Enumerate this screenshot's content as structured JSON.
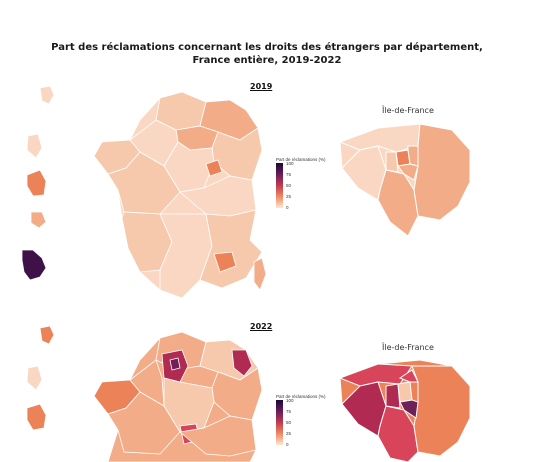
{
  "title": {
    "line1": "Part des réclamations concernant les droits des étrangers par département,",
    "line2": "France entière, 2019-2022"
  },
  "legend": {
    "title": "Part de réclamations (%)",
    "ticks": [
      "100",
      "75",
      "50",
      "25",
      "0"
    ]
  },
  "panels": [
    {
      "year": "2019",
      "inset_title": "Île-de-France"
    },
    {
      "year": "2022",
      "inset_title": "Île-de-France"
    }
  ],
  "colors": {
    "light": "#fad7c2",
    "pale": "#f6c9ad",
    "mid": "#f2ad88",
    "orange": "#ec8358",
    "red": "#d8455a",
    "crimson": "#b02a52",
    "plum": "#6e2058",
    "dark": "#3e1149",
    "border": "#ffffff"
  }
}
